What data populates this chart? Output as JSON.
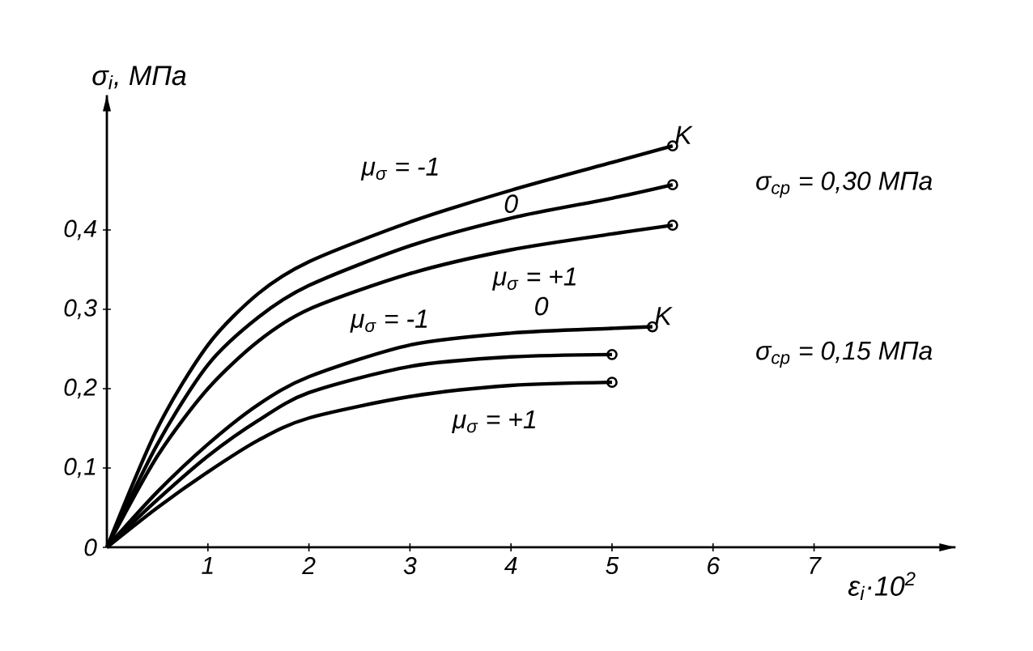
{
  "chart_data": {
    "type": "line",
    "xlabel": "ε$_{i}$·10$^{2}$",
    "ylabel": "σ$_{i}$, МПа",
    "x": [
      0,
      0.5,
      1,
      1.5,
      2,
      3,
      4,
      5
    ],
    "series": [
      {
        "color": "#000000",
        "x": [
          0,
          0.5,
          1,
          1.5,
          2,
          3,
          4,
          5,
          5.6
        ],
        "values": [
          0,
          0.15,
          0.255,
          0.32,
          0.36,
          0.41,
          0.45,
          0.485,
          0.506
        ]
      },
      {
        "color": "#000000",
        "x": [
          0,
          0.5,
          1,
          1.5,
          2,
          3,
          4,
          5,
          5.6
        ],
        "values": [
          0,
          0.13,
          0.23,
          0.29,
          0.33,
          0.38,
          0.415,
          0.44,
          0.457
        ]
      },
      {
        "color": "#000000",
        "x": [
          0,
          0.5,
          1,
          1.5,
          2,
          3,
          4,
          5,
          5.6
        ],
        "values": [
          0,
          0.115,
          0.2,
          0.26,
          0.3,
          0.345,
          0.375,
          0.395,
          0.406
        ]
      },
      {
        "color": "#000000",
        "x": [
          0,
          0.5,
          1,
          1.5,
          2,
          3,
          4,
          5,
          5.4
        ],
        "values": [
          0,
          0.07,
          0.13,
          0.18,
          0.215,
          0.255,
          0.27,
          0.276,
          0.278
        ]
      },
      {
        "color": "#000000",
        "values": [
          0,
          0.06,
          0.115,
          0.16,
          0.195,
          0.228,
          0.24,
          0.243
        ]
      },
      {
        "color": "#000000",
        "values": [
          0,
          0.05,
          0.095,
          0.135,
          0.163,
          0.19,
          0.204,
          0.208
        ]
      }
    ],
    "xlim": [
      0,
      8.4
    ],
    "ylim": [
      0,
      0.57
    ],
    "xticks": [
      1,
      2,
      3,
      4,
      5,
      6,
      7
    ],
    "yticks": [
      0,
      {
        "value": 0.1,
        "label": "0,1"
      },
      {
        "value": 0.2,
        "label": "0,2"
      },
      {
        "value": 0.3,
        "label": "0,3"
      },
      {
        "value": 0.4,
        "label": "0,4"
      }
    ],
    "grid": false,
    "annotations": [
      "μ$_{σ}$ = -1",
      "0",
      "μ$_{σ}$ = +1",
      "K",
      "σ$_{ср}$ = 0,30 МПа",
      "μ$_{σ}$ = -1",
      "0",
      "K",
      "σ$_{ср}$ = 0,15 МПа",
      "μ$_{σ}$ = +1"
    ]
  }
}
